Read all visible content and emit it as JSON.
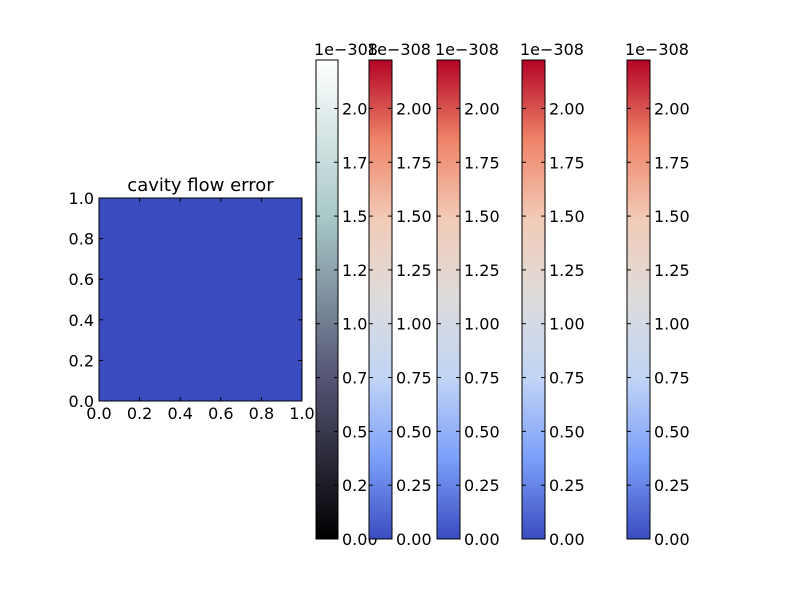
{
  "chart_data": [
    {
      "type": "heatmap",
      "title": "cavity flow error",
      "xlim": [
        0.0,
        1.0
      ],
      "ylim": [
        0.0,
        1.0
      ],
      "x_ticks": [
        "0.0",
        "0.2",
        "0.4",
        "0.6",
        "0.8",
        "1.0"
      ],
      "y_ticks": [
        "0.0",
        "0.2",
        "0.4",
        "0.6",
        "0.8",
        "1.0"
      ],
      "fill_color": "#3b4cc0",
      "grid": false
    },
    {
      "type": "colorbar",
      "colormap": "bone",
      "colors": [
        "#000000",
        "#545474",
        "#a7c7c7",
        "#ffffff"
      ],
      "offset_label": "1e−308",
      "range": [
        0.0,
        2.225
      ],
      "ticks": [
        "0.00",
        "0.25",
        "0.50",
        "0.75",
        "1.00",
        "1.25",
        "1.50",
        "1.75",
        "2.00"
      ]
    },
    {
      "type": "colorbar",
      "colormap": "coolwarm",
      "colors": [
        "#3b4cc0",
        "#7b9ff9",
        "#c0d4f5",
        "#dddcdc",
        "#f2cbb7",
        "#ee8468",
        "#b40426"
      ],
      "offset_label": "1e−308",
      "range": [
        0.0,
        2.225
      ],
      "ticks": [
        "0.00",
        "0.25",
        "0.50",
        "0.75",
        "1.00",
        "1.25",
        "1.50",
        "1.75",
        "2.00"
      ]
    },
    {
      "type": "colorbar",
      "colormap": "coolwarm",
      "colors": [
        "#3b4cc0",
        "#7b9ff9",
        "#c0d4f5",
        "#dddcdc",
        "#f2cbb7",
        "#ee8468",
        "#b40426"
      ],
      "offset_label": "1e−308",
      "range": [
        0.0,
        2.225
      ],
      "ticks": [
        "0.00",
        "0.25",
        "0.50",
        "0.75",
        "1.00",
        "1.25",
        "1.50",
        "1.75",
        "2.00"
      ]
    },
    {
      "type": "colorbar",
      "colormap": "coolwarm",
      "colors": [
        "#3b4cc0",
        "#7b9ff9",
        "#c0d4f5",
        "#dddcdc",
        "#f2cbb7",
        "#ee8468",
        "#b40426"
      ],
      "offset_label": "1e−308",
      "range": [
        0.0,
        2.225
      ],
      "ticks": [
        "0.00",
        "0.25",
        "0.50",
        "0.75",
        "1.00",
        "1.25",
        "1.50",
        "1.75",
        "2.00"
      ]
    },
    {
      "type": "colorbar",
      "colormap": "coolwarm",
      "colors": [
        "#3b4cc0",
        "#7b9ff9",
        "#c0d4f5",
        "#dddcdc",
        "#f2cbb7",
        "#ee8468",
        "#b40426"
      ],
      "offset_label": "1e−308",
      "range": [
        0.0,
        2.225
      ],
      "ticks": [
        "0.00",
        "0.25",
        "0.50",
        "0.75",
        "1.00",
        "1.25",
        "1.50",
        "1.75",
        "2.00"
      ]
    }
  ]
}
